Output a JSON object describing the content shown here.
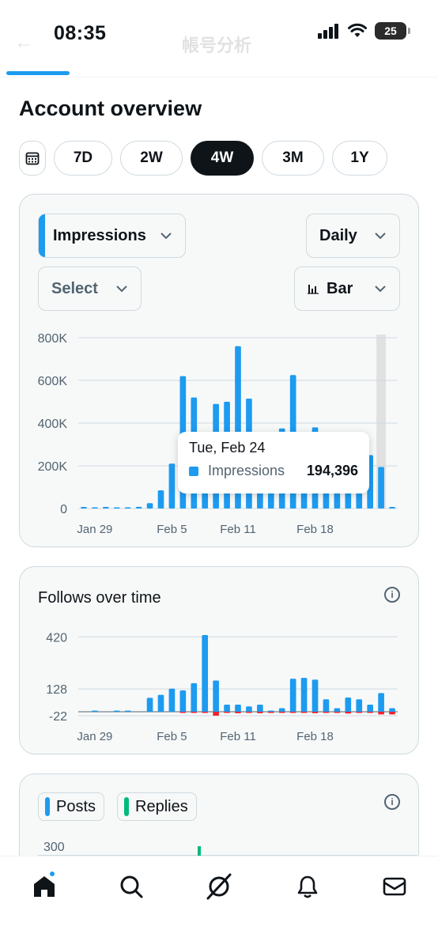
{
  "status_bar": {
    "time": "08:35",
    "battery": "25"
  },
  "header": {
    "title": "帳号分析"
  },
  "page": {
    "title": "Account overview"
  },
  "ranges": [
    "7D",
    "2W",
    "4W",
    "3M",
    "1Y"
  ],
  "active_range": "4W",
  "impressions_card": {
    "metric_select": "Impressions",
    "interval_select": "Daily",
    "compare_select": "Select",
    "chart_type_select": "Bar",
    "tooltip": {
      "date": "Tue, Feb 24",
      "series": "Impressions",
      "value": "194,396"
    }
  },
  "follows_card": {
    "title": "Follows over time"
  },
  "posts_card": {
    "legend": [
      "Posts",
      "Replies"
    ],
    "ytick": "300"
  },
  "colors": {
    "accent": "#1d9bf0",
    "negative": "#f4212e",
    "replies": "#00ba7c",
    "highlight": "#e1e1e1"
  },
  "nav": [
    "home-icon",
    "search-icon",
    "grok-icon",
    "notifications-icon",
    "messages-icon"
  ],
  "chart_data": [
    {
      "type": "bar",
      "name": "impressions",
      "x": [
        "Jan 28",
        "Jan 29",
        "Jan 30",
        "Jan 31",
        "Feb 1",
        "Feb 2",
        "Feb 3",
        "Feb 4",
        "Feb 5",
        "Feb 6",
        "Feb 7",
        "Feb 8",
        "Feb 9",
        "Feb 10",
        "Feb 11",
        "Feb 12",
        "Feb 13",
        "Feb 14",
        "Feb 15",
        "Feb 16",
        "Feb 17",
        "Feb 18",
        "Feb 19",
        "Feb 20",
        "Feb 21",
        "Feb 22",
        "Feb 23",
        "Feb 24",
        "Feb 25"
      ],
      "values": [
        3000,
        0,
        3000,
        0,
        0,
        8000,
        25000,
        85000,
        210000,
        620000,
        520000,
        210000,
        490000,
        500000,
        760000,
        515000,
        205000,
        310000,
        375000,
        625000,
        200000,
        380000,
        215000,
        210000,
        205000,
        205000,
        250000,
        194396,
        5000
      ],
      "highlight_index": 27,
      "xtick_labels": [
        "Jan 29",
        "Feb 5",
        "Feb 11",
        "Feb 18"
      ],
      "yticks": [
        "0",
        "200K",
        "400K",
        "600K",
        "800K"
      ],
      "ylim": [
        0,
        800000
      ],
      "grid": true
    },
    {
      "type": "bar",
      "name": "follows",
      "title": "Follows over time",
      "x": [
        "Jan 28",
        "Jan 29",
        "Jan 30",
        "Jan 31",
        "Feb 1",
        "Feb 2",
        "Feb 3",
        "Feb 4",
        "Feb 5",
        "Feb 6",
        "Feb 7",
        "Feb 8",
        "Feb 9",
        "Feb 10",
        "Feb 11",
        "Feb 12",
        "Feb 13",
        "Feb 14",
        "Feb 15",
        "Feb 16",
        "Feb 17",
        "Feb 18",
        "Feb 19",
        "Feb 20",
        "Feb 21",
        "Feb 22",
        "Feb 23",
        "Feb 24",
        "Feb 25"
      ],
      "gains": [
        0,
        1,
        0,
        2,
        1,
        0,
        78,
        95,
        130,
        120,
        160,
        430,
        175,
        40,
        40,
        30,
        40,
        5,
        20,
        185,
        190,
        180,
        70,
        20,
        80,
        70,
        40,
        105,
        20
      ],
      "losses": [
        0,
        0,
        0,
        0,
        0,
        0,
        0,
        0,
        0,
        -5,
        -5,
        -5,
        -22,
        -5,
        -8,
        -5,
        -8,
        -5,
        -5,
        -5,
        -5,
        -8,
        -5,
        -5,
        -10,
        -5,
        -5,
        -15,
        -15
      ],
      "xtick_labels": [
        "Jan 29",
        "Feb 5",
        "Feb 11",
        "Feb 18"
      ],
      "yticks": [
        "-22",
        "128",
        "420"
      ],
      "ylim": [
        -22,
        430
      ],
      "grid": true
    }
  ]
}
